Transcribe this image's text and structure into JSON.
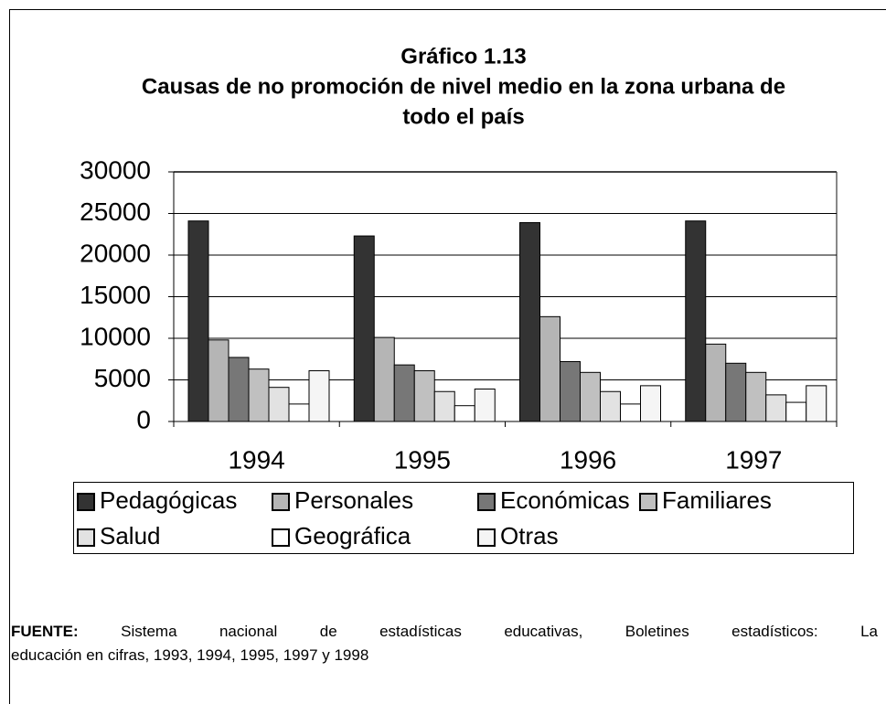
{
  "chart_data": {
    "type": "bar",
    "title": "Gráfico 1.13",
    "subtitle": [
      "Causas de no promoción de nivel medio en la zona urbana de",
      "todo el país"
    ],
    "categories": [
      "1994",
      "1995",
      "1996",
      "1997"
    ],
    "series": [
      {
        "name": "Pedagógicas",
        "color": "#333333",
        "values": [
          24100,
          22300,
          23900,
          24100
        ]
      },
      {
        "name": "Personales",
        "color": "#b5b5b5",
        "values": [
          9800,
          10100,
          12600,
          9300
        ]
      },
      {
        "name": "Económicas",
        "color": "#777777",
        "values": [
          7700,
          6800,
          7200,
          7000
        ]
      },
      {
        "name": "Familiares",
        "color": "#c0c0c0",
        "values": [
          6300,
          6100,
          5900,
          5900
        ]
      },
      {
        "name": "Salud",
        "color": "#e2e2e2",
        "values": [
          4100,
          3600,
          3600,
          3200
        ]
      },
      {
        "name": "Geográfica",
        "color": "#ffffff",
        "values": [
          2100,
          1900,
          2100,
          2300
        ]
      },
      {
        "name": "Otras",
        "color": "#f5f5f5",
        "values": [
          6100,
          3900,
          4300,
          4300
        ]
      }
    ],
    "ylim": [
      0,
      30000
    ],
    "yticks": [
      0,
      5000,
      10000,
      15000,
      20000,
      25000,
      30000
    ],
    "grid": true,
    "legend": "bottom",
    "source_label": "FUENTE:",
    "source_text": [
      "Sistema nacional de estadísticas educativas, Boletines estadísticos: La",
      "educación en cifras, 1993, 1994, 1995, 1997 y 1998"
    ]
  }
}
